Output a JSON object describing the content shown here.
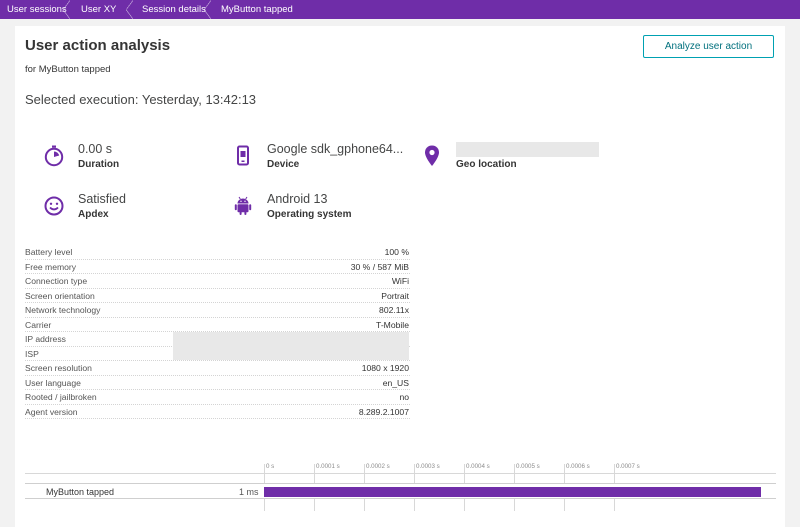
{
  "breadcrumb": {
    "items": [
      {
        "label": "User sessions"
      },
      {
        "label": "User XY"
      },
      {
        "label": "Session details"
      },
      {
        "label": "MyButton tapped"
      }
    ]
  },
  "header": {
    "title": "User action analysis",
    "subtitle": "for MyButton tapped",
    "analyze_button": "Analyze user action"
  },
  "selected_execution": "Selected execution: Yesterday, 13:42:13",
  "tiles": {
    "duration": {
      "value": "0.00 s",
      "label": "Duration",
      "icon": "stopwatch-icon"
    },
    "device": {
      "value": "Google sdk_gphone64...",
      "label": "Device",
      "icon": "smartphone-icon"
    },
    "geo": {
      "value": "",
      "label": "Geo location",
      "icon": "location-pin-icon"
    },
    "apdex": {
      "value": "Satisfied",
      "label": "Apdex",
      "icon": "smiley-icon"
    },
    "os": {
      "value": "Android 13",
      "label": "Operating system",
      "icon": "android-icon"
    }
  },
  "details": [
    {
      "key": "Battery level",
      "value": "100 %"
    },
    {
      "key": "Free memory",
      "value": "30 % / 587 MiB"
    },
    {
      "key": "Connection type",
      "value": "WiFi"
    },
    {
      "key": "Screen orientation",
      "value": "Portrait"
    },
    {
      "key": "Network technology",
      "value": "802.11x"
    },
    {
      "key": "Carrier",
      "value": "T-Mobile"
    },
    {
      "key": "IP address",
      "value": ""
    },
    {
      "key": "ISP",
      "value": ""
    },
    {
      "key": "Screen resolution",
      "value": "1080 x 1920"
    },
    {
      "key": "User language",
      "value": "en_US"
    },
    {
      "key": "Rooted / jailbroken",
      "value": "no"
    },
    {
      "key": "Agent version",
      "value": "8.289.2.1007"
    }
  ],
  "timeline": {
    "ticks": [
      "0 s",
      "0.0001 s",
      "0.0002 s",
      "0.0003 s",
      "0.0004 s",
      "0.0005 s",
      "0.0006 s",
      "0.0007 s"
    ],
    "action_name": "MyButton tapped",
    "duration": "1 ms",
    "bar_color": "#6f2da8"
  },
  "colors": {
    "brand": "#6f2da8",
    "accent": "#00a1b2"
  }
}
